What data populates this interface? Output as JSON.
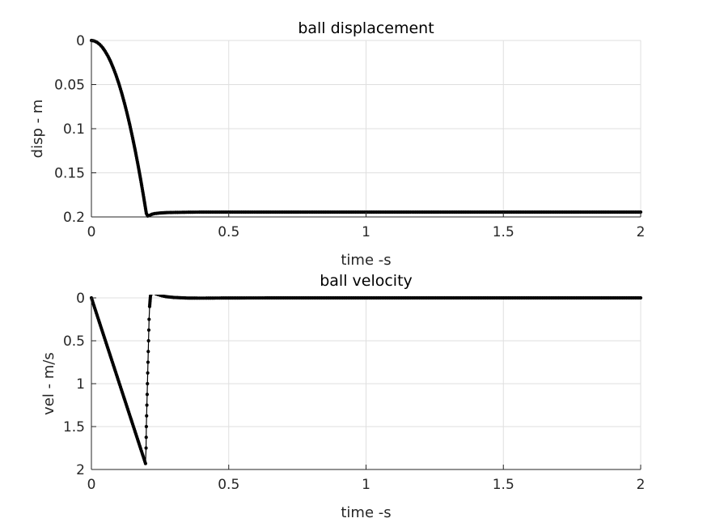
{
  "chart_data": [
    {
      "type": "line",
      "title": "ball displacement",
      "xlabel": "time -s",
      "ylabel": "disp - m",
      "xlim": [
        0,
        2
      ],
      "ylim": [
        0,
        0.2
      ],
      "y_reversed": true,
      "grid": true,
      "xticks": [
        "0",
        "0.5",
        "1",
        "1.5",
        "2"
      ],
      "xtick_values": [
        0,
        0.5,
        1,
        1.5,
        2
      ],
      "yticks": [
        "0",
        "0.05",
        "0.1",
        "0.15",
        "0.2"
      ],
      "ytick_values": [
        0,
        0.05,
        0.1,
        0.15,
        0.2
      ],
      "series": [
        {
          "color": "#000000",
          "markers": true,
          "x": [
            0,
            0.01,
            0.02,
            0.03,
            0.04,
            0.05,
            0.06,
            0.07,
            0.08,
            0.09,
            0.1,
            0.11,
            0.12,
            0.13,
            0.14,
            0.15,
            0.16,
            0.17,
            0.18,
            0.19,
            0.2,
            0.205,
            0.21,
            0.22,
            0.23,
            0.25,
            0.28,
            0.32,
            0.36,
            0.4,
            0.5,
            0.6,
            0.8,
            1.0,
            1.2,
            1.4,
            1.6,
            1.8,
            2.0
          ],
          "y": [
            0,
            0.0005,
            0.002,
            0.0044,
            0.0078,
            0.0123,
            0.0176,
            0.024,
            0.0314,
            0.0397,
            0.049,
            0.0593,
            0.0706,
            0.0828,
            0.096,
            0.1103,
            0.1254,
            0.1416,
            0.1587,
            0.1769,
            0.196,
            0.199,
            0.1985,
            0.197,
            0.1962,
            0.1955,
            0.195,
            0.1948,
            0.1946,
            0.1945,
            0.1945,
            0.1945,
            0.1945,
            0.1945,
            0.1945,
            0.1945,
            0.1945,
            0.1945,
            0.1945
          ]
        }
      ]
    },
    {
      "type": "line",
      "title": "ball velocity",
      "xlabel": "time -s",
      "ylabel": "vel - m/s",
      "xlim": [
        0,
        2
      ],
      "ylim": [
        0,
        2
      ],
      "y_reversed": true,
      "grid": true,
      "xticks": [
        "0",
        "0.5",
        "1",
        "1.5",
        "2"
      ],
      "xtick_values": [
        0,
        0.5,
        1,
        1.5,
        2
      ],
      "yticks": [
        "0",
        "0.5",
        "1",
        "1.5",
        "2"
      ],
      "ytick_values": [
        0,
        0.5,
        1,
        1.5,
        2
      ],
      "series": [
        {
          "color": "#000000",
          "markers": true,
          "x": [
            0,
            0.02,
            0.04,
            0.06,
            0.08,
            0.1,
            0.12,
            0.14,
            0.16,
            0.18,
            0.197,
            0.199,
            0.2,
            0.202,
            0.204,
            0.206,
            0.208,
            0.21,
            0.212,
            0.215,
            0.218,
            0.222,
            0.228,
            0.236,
            0.25,
            0.27,
            0.3,
            0.35,
            0.4,
            0.5,
            0.7,
            1.0,
            1.5,
            2.0
          ],
          "y": [
            0,
            0.196,
            0.392,
            0.588,
            0.784,
            0.98,
            1.176,
            1.372,
            1.568,
            1.764,
            1.93,
            1.75,
            1.5,
            1.25,
            1.0,
            0.75,
            0.5,
            0.25,
            0.1,
            -0.02,
            -0.05,
            -0.06,
            -0.055,
            -0.045,
            -0.03,
            -0.015,
            -0.005,
            0.002,
            0.003,
            0.001,
            0,
            0,
            0,
            0
          ]
        }
      ]
    }
  ]
}
